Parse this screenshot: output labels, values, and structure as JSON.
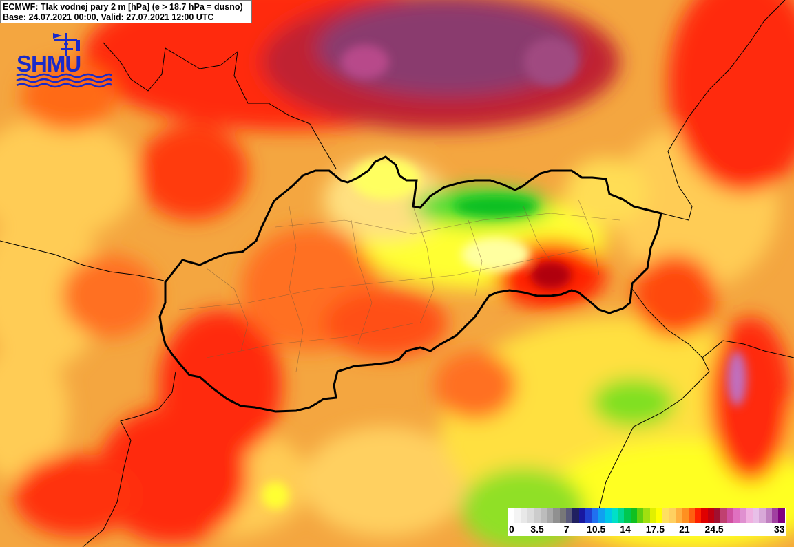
{
  "header": {
    "title": "ECMWF: Tlak vodnej pary 2 m [hPa] (e > 18.7 hPa = dusno)",
    "subtitle": "Base: 24.07.2021 00:00, Valid: 27.07.2021 12:00 UTC"
  },
  "logo": {
    "text": "SHMU",
    "icon": "weather-vane-icon"
  },
  "legend": {
    "labels": [
      "0",
      "3.5",
      "7",
      "10.5",
      "14",
      "17.5",
      "21",
      "24.5",
      "33"
    ],
    "colors": [
      "#ffffff",
      "#f4f4f4",
      "#e8e8e8",
      "#dcdcdc",
      "#cccccc",
      "#bcbcbc",
      "#a8a8a8",
      "#909090",
      "#787878",
      "#5a5a7a",
      "#202060",
      "#1818a0",
      "#2040d0",
      "#2070f0",
      "#10a0f0",
      "#00c8e8",
      "#00e0c8",
      "#00d890",
      "#00c850",
      "#10c020",
      "#60d010",
      "#a0e010",
      "#e0f000",
      "#ffff00",
      "#ffe060",
      "#ffd060",
      "#ffb040",
      "#ff9020",
      "#ff6010",
      "#ff2000",
      "#e00000",
      "#c00010",
      "#a01030",
      "#c04070",
      "#d050a0",
      "#e070c0",
      "#e090d0",
      "#f0b0e0",
      "#e8c0e8",
      "#d8a8d8",
      "#c080c0",
      "#a040a0",
      "#800080"
    ]
  },
  "colors": {
    "high": "#b8203a",
    "very_high": "#8a3a6e",
    "red": "#ff2a10",
    "orange_red": "#ff6a18",
    "orange": "#f4a640",
    "yellow_orange": "#ffcc55",
    "yellow": "#ffff20",
    "green": "#40dd30",
    "light_green": "#a8ec28",
    "border": "#000000"
  }
}
